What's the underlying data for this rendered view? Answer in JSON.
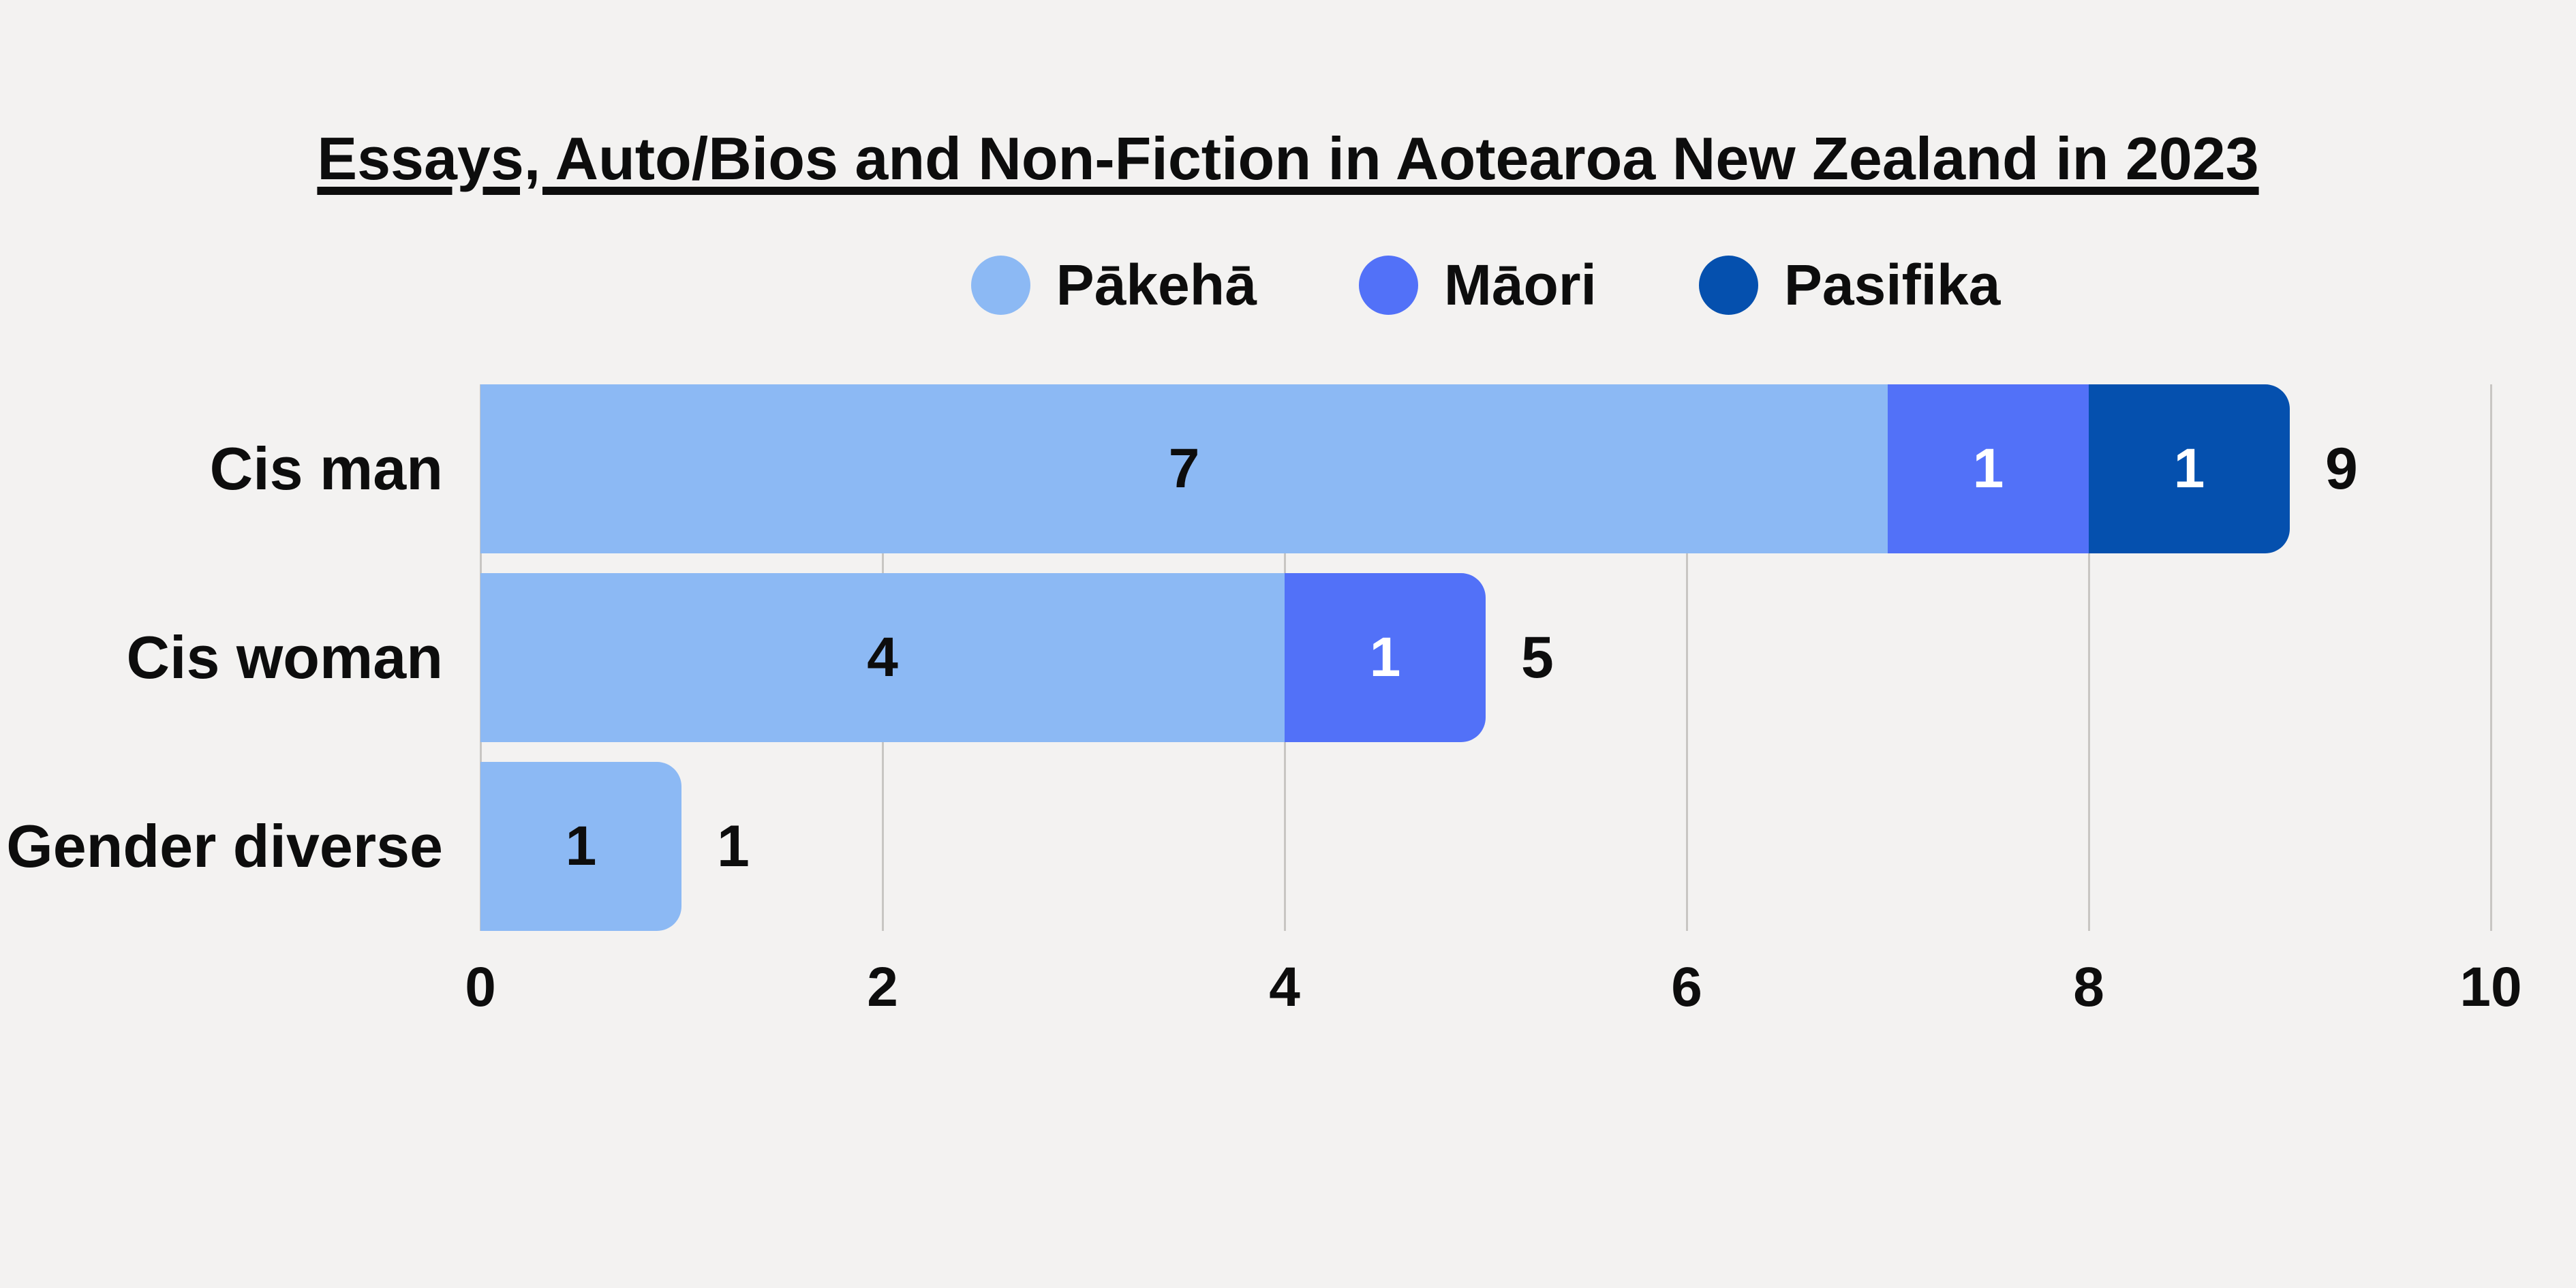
{
  "page": {
    "background_color": "#f3f2f1",
    "text_color": "#0d0d0d",
    "gridline_color": "#c8c6c3"
  },
  "chart_data": {
    "type": "bar",
    "orientation": "horizontal",
    "stacked": true,
    "title": "Essays, Auto/Bios and Non-Fiction in Aotearoa New Zealand in 2023",
    "categories": [
      "Cis man",
      "Cis woman",
      "Gender diverse"
    ],
    "series": [
      {
        "key": "pakeha",
        "name": "Pākehā",
        "color": "#8cb9f4",
        "label_color": "#0d0d0d",
        "values": [
          7,
          4,
          1
        ]
      },
      {
        "key": "maori",
        "name": "Māori",
        "color": "#5271f8",
        "label_color": "#ffffff",
        "values": [
          1,
          1,
          0
        ]
      },
      {
        "key": "pasifika",
        "name": "Pasifika",
        "color": "#0550ae",
        "label_color": "#ffffff",
        "values": [
          1,
          0,
          0
        ]
      }
    ],
    "totals": [
      9,
      5,
      1
    ],
    "xlim": [
      0,
      10
    ],
    "x_ticks": [
      0,
      2,
      4,
      6,
      8,
      10
    ],
    "grid": "vertical",
    "legend_position": "top-center"
  }
}
